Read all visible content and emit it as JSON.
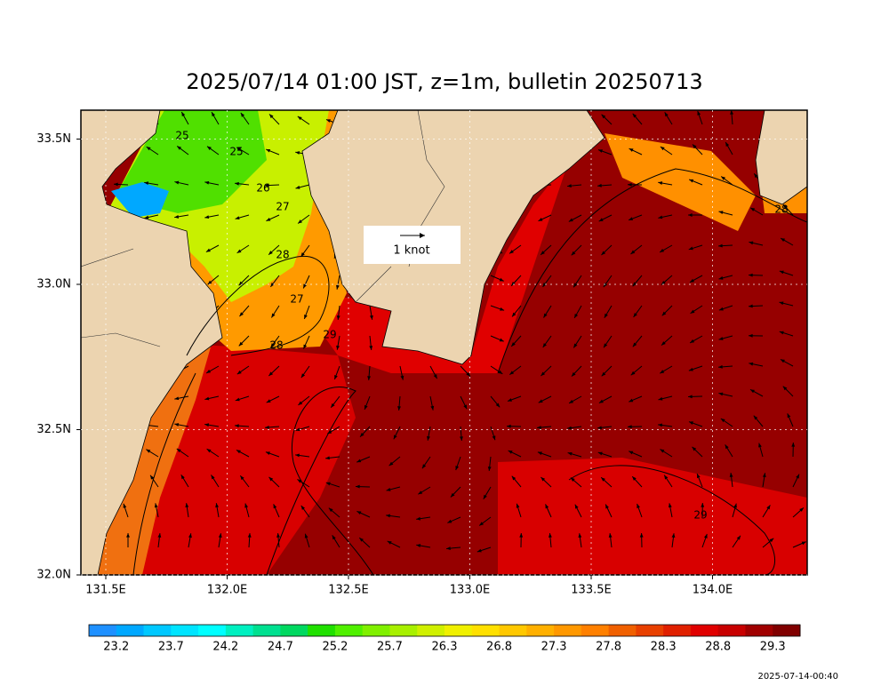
{
  "title": "2025/07/14 01:00 JST, z=1m, bulletin 20250713",
  "map": {
    "lon_ticks": [
      "131.5E",
      "132.0E",
      "132.5E",
      "133.0E",
      "133.5E",
      "134.0E"
    ],
    "lat_ticks": [
      "32.0N",
      "32.5N",
      "33.0N",
      "33.5N"
    ],
    "contour_labels": [
      "25",
      "25",
      "26",
      "27",
      "28",
      "27",
      "28",
      "29",
      "28",
      "29"
    ]
  },
  "reference_arrow": {
    "label": "1 knot"
  },
  "colorbar": {
    "labels": [
      "23.2",
      "23.7",
      "24.2",
      "24.7",
      "25.2",
      "25.7",
      "26.3",
      "26.8",
      "27.3",
      "27.8",
      "28.3",
      "28.8",
      "29.3"
    ],
    "colors": [
      "#1e90ff",
      "#00a8ff",
      "#00c8ff",
      "#00e4ff",
      "#00ffff",
      "#00f0c0",
      "#00e090",
      "#00d860",
      "#20e000",
      "#50f000",
      "#80f000",
      "#a8f000",
      "#d0f000",
      "#f0f000",
      "#ffe000",
      "#ffc800",
      "#ffb000",
      "#ff9800",
      "#ff8000",
      "#f06000",
      "#e84000",
      "#e02000",
      "#e00000",
      "#c80000",
      "#a00000",
      "#800000"
    ]
  },
  "timestamp": "2025-07-14-00:40"
}
